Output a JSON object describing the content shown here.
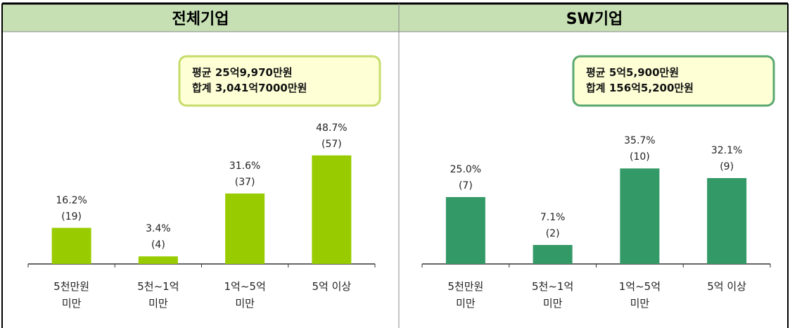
{
  "chart_data": [
    {
      "type": "bar",
      "title": "전체기업",
      "annotation": [
        "평균 25억9,970만원",
        "합계 3,041억7000만원"
      ],
      "categories": [
        "5천만원\n미만",
        "5천~1억\n미만",
        "1억~5억\n미만",
        "5억 이상"
      ],
      "values": [
        16.2,
        3.4,
        31.6,
        48.7
      ],
      "value_labels": [
        "16.2%",
        "3.4%",
        "31.6%",
        "48.7%"
      ],
      "count_labels": [
        "(19)",
        "(4)",
        "(37)",
        "(57)"
      ],
      "color": "#99cc00",
      "ylim": [
        0,
        90
      ]
    },
    {
      "type": "bar",
      "title": "SW기업",
      "annotation": [
        "평균 5억5,900만원",
        "합계 156억5,200만원"
      ],
      "categories": [
        "5천만원\n미만",
        "5천~1억\n미만",
        "1억~5억\n미만",
        "5억 이상"
      ],
      "values": [
        25.0,
        7.1,
        35.7,
        32.1
      ],
      "value_labels": [
        "25.0%",
        "7.1%",
        "35.7%",
        "32.1%"
      ],
      "count_labels": [
        "(7)",
        "(2)",
        "(10)",
        "(9)"
      ],
      "color": "#339966",
      "ylim": [
        0,
        75
      ]
    }
  ]
}
